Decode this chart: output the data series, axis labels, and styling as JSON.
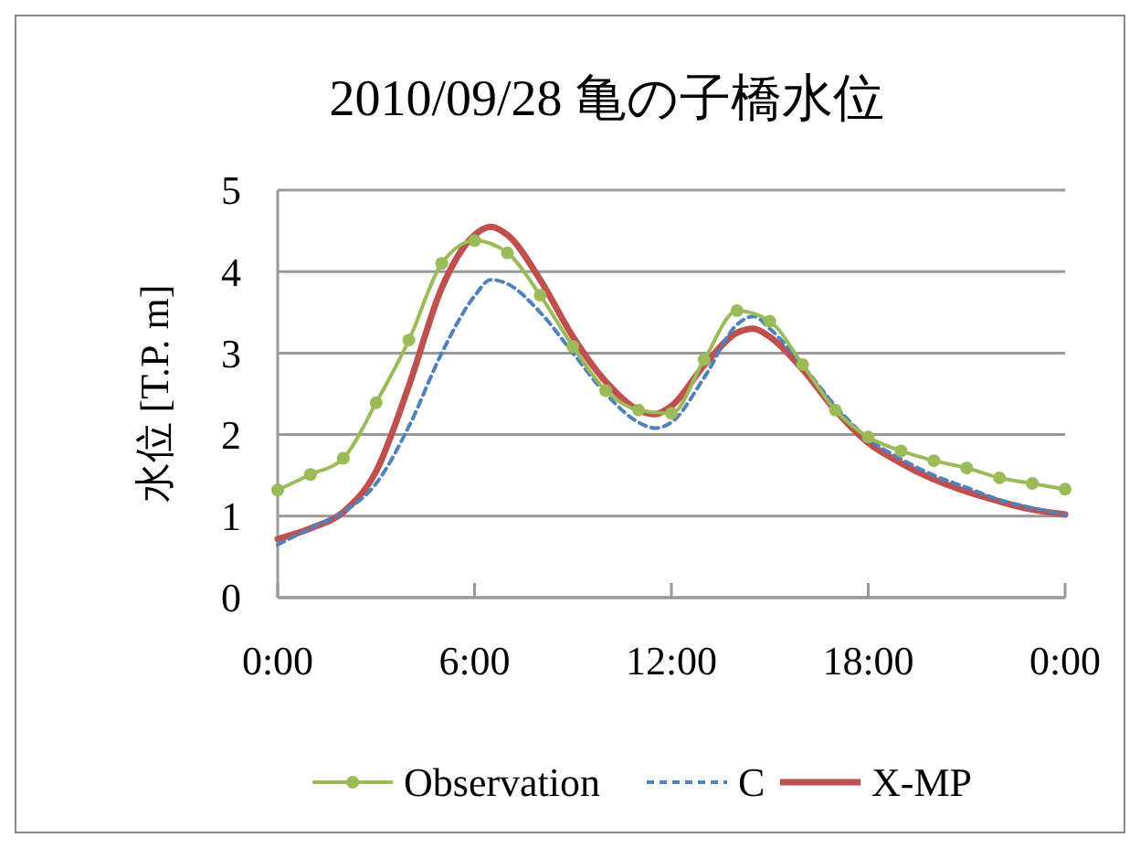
{
  "chart_data": {
    "type": "line",
    "title": "2010/09/28 亀の子橋水位",
    "ylabel": "水位 [T.P. m]",
    "xlim": [
      0,
      24
    ],
    "xticks": [
      {
        "value": 0,
        "label": "0:00"
      },
      {
        "value": 6,
        "label": "6:00"
      },
      {
        "value": 12,
        "label": "12:00"
      },
      {
        "value": 18,
        "label": "18:00"
      },
      {
        "value": 24,
        "label": "0:00"
      }
    ],
    "ylim": [
      0,
      5
    ],
    "yticks": [
      0,
      1,
      2,
      3,
      4,
      5
    ],
    "grid": "y",
    "legend": "bottom",
    "series": [
      {
        "name": "Observation",
        "color": "#9bbb59",
        "marker": "circle",
        "line_style": "solid",
        "x": [
          0,
          1,
          2,
          3,
          4,
          5,
          6,
          7,
          8,
          9,
          10,
          11,
          12,
          13,
          14,
          15,
          16,
          17,
          18,
          19,
          20,
          21,
          22,
          23,
          24
        ],
        "values": [
          1.32,
          1.51,
          1.71,
          2.39,
          3.16,
          4.1,
          4.38,
          4.23,
          3.71,
          3.08,
          2.54,
          2.3,
          2.26,
          2.92,
          3.52,
          3.39,
          2.86,
          2.3,
          1.97,
          1.8,
          1.68,
          1.59,
          1.47,
          1.4,
          1.33
        ]
      },
      {
        "name": "C",
        "color": "#4f81bd",
        "marker": "none",
        "line_style": "dashed",
        "x": [
          0,
          1,
          2,
          3,
          4,
          5,
          6,
          6.5,
          7,
          8,
          9,
          10,
          11,
          11.5,
          12,
          13,
          14,
          14.5,
          15,
          16,
          17,
          18,
          19,
          20,
          21,
          22,
          23,
          24
        ],
        "values": [
          0.65,
          0.85,
          1.05,
          1.4,
          2.1,
          3.0,
          3.7,
          3.9,
          3.85,
          3.5,
          3.0,
          2.5,
          2.15,
          2.08,
          2.15,
          2.7,
          3.35,
          3.45,
          3.3,
          2.85,
          2.35,
          1.95,
          1.7,
          1.5,
          1.35,
          1.2,
          1.1,
          1.02
        ]
      },
      {
        "name": "X-MP",
        "color": "#c0504d",
        "marker": "none",
        "line_style": "solid",
        "x": [
          0,
          1,
          2,
          3,
          4,
          5,
          6,
          6.5,
          7,
          8,
          9,
          10,
          11,
          11.5,
          12,
          13,
          14,
          14.5,
          15,
          16,
          17,
          18,
          19,
          20,
          21,
          22,
          23,
          24
        ],
        "values": [
          0.72,
          0.85,
          1.05,
          1.55,
          2.6,
          3.8,
          4.45,
          4.55,
          4.45,
          3.9,
          3.2,
          2.65,
          2.3,
          2.25,
          2.35,
          2.85,
          3.25,
          3.3,
          3.2,
          2.8,
          2.3,
          1.9,
          1.65,
          1.45,
          1.3,
          1.18,
          1.08,
          1.02
        ]
      }
    ]
  }
}
